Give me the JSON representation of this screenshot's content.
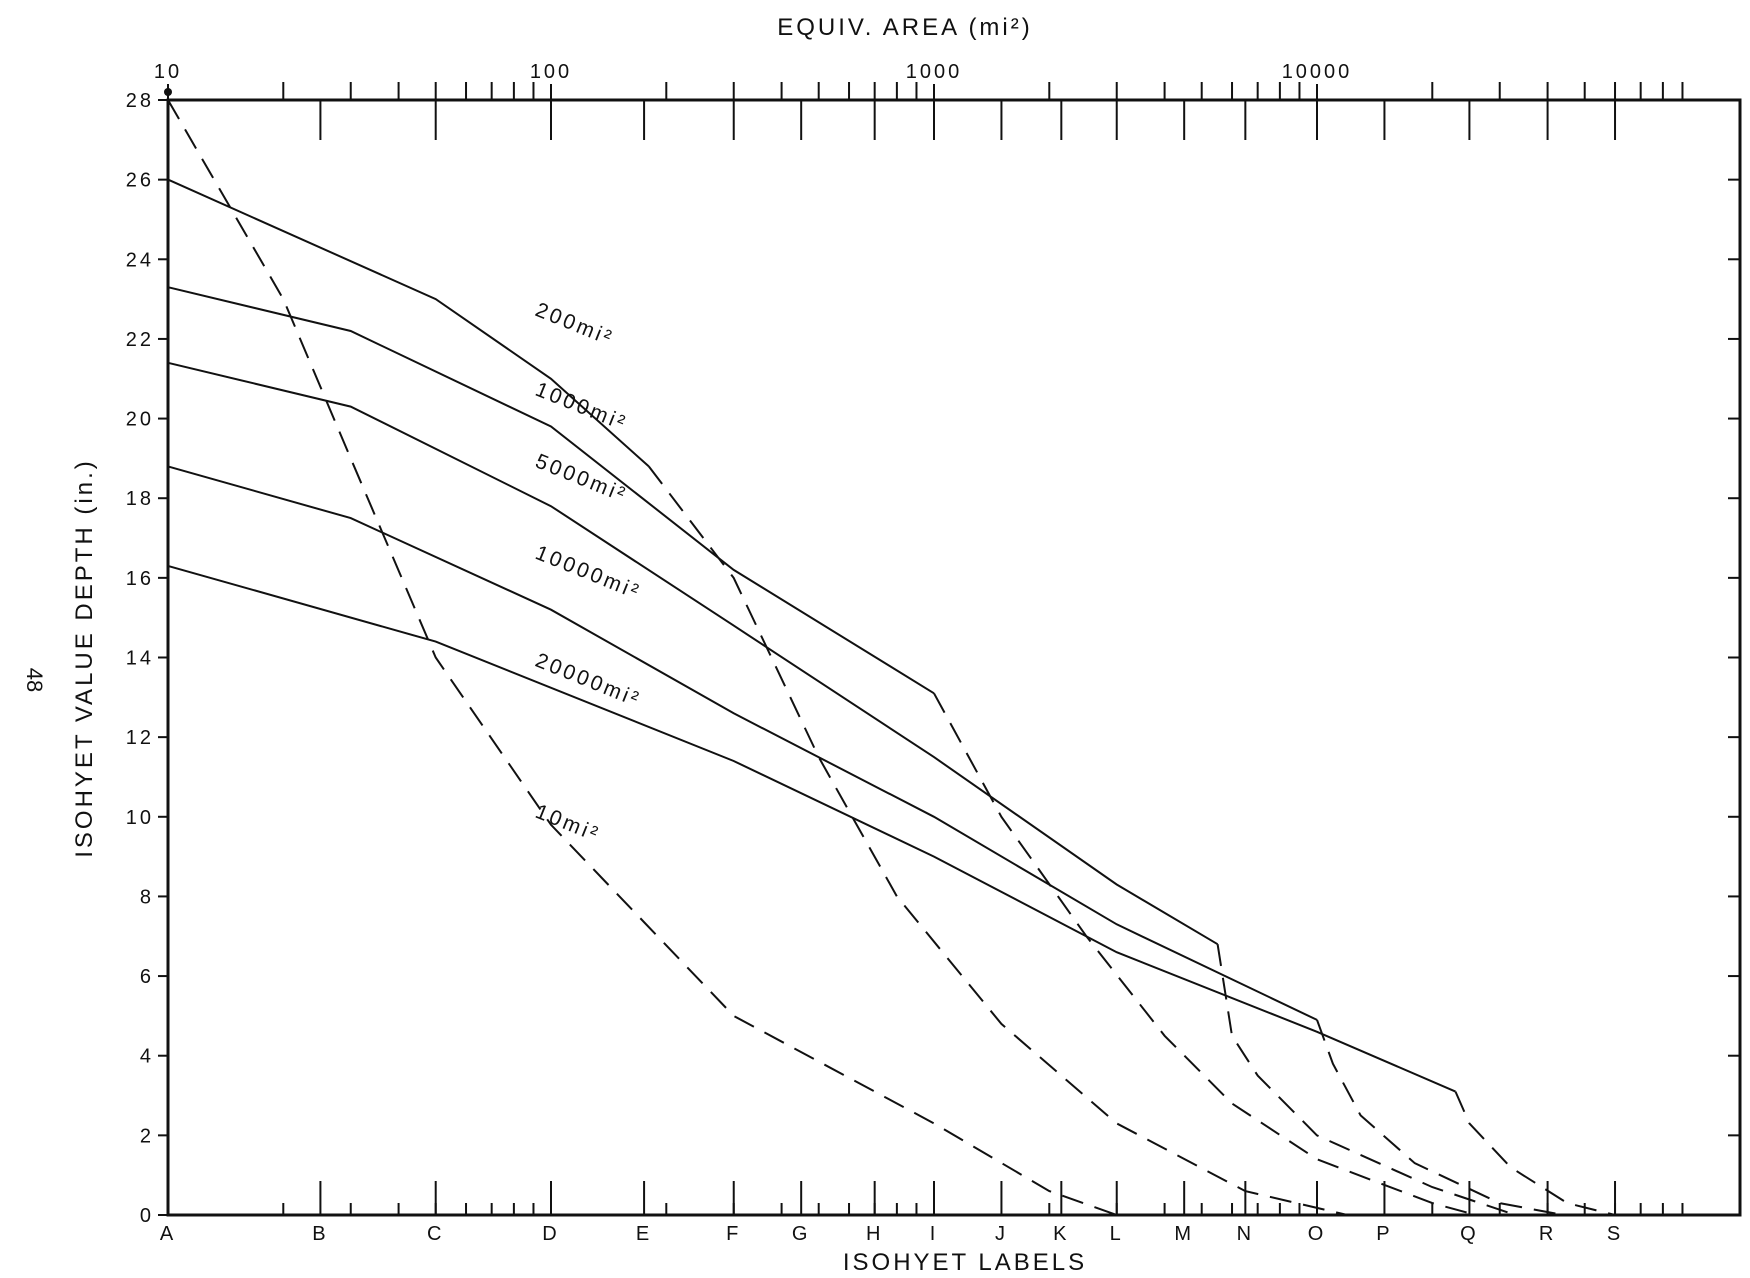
{
  "page_number": "48",
  "chart_data": {
    "type": "line",
    "title": "",
    "xlabel": "ISOHYET LABELS",
    "x2label": "EQUIV. AREA (mi²)",
    "ylabel": "ISOHYET VALUE DEPTH (in.)",
    "ylim": [
      0,
      28
    ],
    "yticks": [
      "0",
      "2",
      "4",
      "6",
      "8",
      "10",
      "12",
      "14",
      "16",
      "18",
      "20",
      "22",
      "24",
      "26",
      "28"
    ],
    "x_labels": [
      {
        "label": "A",
        "area": 10
      },
      {
        "label": "B",
        "area": 25
      },
      {
        "label": "C",
        "area": 50
      },
      {
        "label": "D",
        "area": 100
      },
      {
        "label": "E",
        "area": 175
      },
      {
        "label": "F",
        "area": 300
      },
      {
        "label": "G",
        "area": 450
      },
      {
        "label": "H",
        "area": 700
      },
      {
        "label": "I",
        "area": 1000
      },
      {
        "label": "J",
        "area": 1500
      },
      {
        "label": "K",
        "area": 2150
      },
      {
        "label": "L",
        "area": 3000
      },
      {
        "label": "M",
        "area": 4500
      },
      {
        "label": "N",
        "area": 6500
      },
      {
        "label": "O",
        "area": 10000
      },
      {
        "label": "P",
        "area": 15000
      },
      {
        "label": "Q",
        "area": 25000
      },
      {
        "label": "R",
        "area": 40000
      },
      {
        "label": "S",
        "area": 60000
      }
    ],
    "top_axis_labels": [
      {
        "label": "10",
        "area": 10
      },
      {
        "label": "100",
        "area": 100
      },
      {
        "label": "1000",
        "area": 1000
      },
      {
        "label": "10000",
        "area": 10000
      }
    ],
    "series": [
      {
        "name": "200mi²",
        "label_area": 1000,
        "label_depth": 22.6,
        "solid": [
          [
            10,
            26.0
          ],
          [
            50,
            23.0
          ],
          [
            100,
            21.0
          ],
          [
            180,
            18.8
          ]
        ],
        "dashed": [
          [
            180,
            18.8
          ],
          [
            300,
            16.0
          ],
          [
            500,
            11.5
          ],
          [
            800,
            8.0
          ],
          [
            1500,
            4.8
          ],
          [
            3000,
            2.3
          ],
          [
            6500,
            0.6
          ],
          [
            12000,
            0
          ]
        ]
      },
      {
        "name": "1000mi²",
        "label_area": 1000,
        "label_depth": 20.6,
        "solid": [
          [
            10,
            23.3
          ],
          [
            30,
            22.2
          ],
          [
            100,
            19.8
          ],
          [
            300,
            16.2
          ],
          [
            1000,
            13.1
          ]
        ],
        "dashed": [
          [
            1000,
            13.1
          ],
          [
            1500,
            10.0
          ],
          [
            2500,
            7.0
          ],
          [
            4000,
            4.5
          ],
          [
            6000,
            2.8
          ],
          [
            10000,
            1.4
          ],
          [
            20000,
            0.3
          ],
          [
            26000,
            0
          ]
        ]
      },
      {
        "name": "5000mi²",
        "label_area": 1000,
        "label_depth": 18.8,
        "solid": [
          [
            10,
            21.4
          ],
          [
            30,
            20.3
          ],
          [
            100,
            17.8
          ],
          [
            300,
            14.8
          ],
          [
            1000,
            11.5
          ],
          [
            3000,
            8.3
          ],
          [
            5500,
            6.8
          ]
        ],
        "dashed": [
          [
            5500,
            6.8
          ],
          [
            6000,
            4.5
          ],
          [
            7000,
            3.5
          ],
          [
            10000,
            2.0
          ],
          [
            20000,
            0.7
          ],
          [
            33000,
            0
          ]
        ]
      },
      {
        "name": "10000mi²",
        "label_area": 1000,
        "label_depth": 16.5,
        "solid": [
          [
            10,
            18.8
          ],
          [
            30,
            17.5
          ],
          [
            100,
            15.2
          ],
          [
            300,
            12.6
          ],
          [
            1000,
            10.0
          ],
          [
            3000,
            7.3
          ],
          [
            10000,
            4.9
          ]
        ],
        "dashed": [
          [
            10000,
            4.9
          ],
          [
            11000,
            3.8
          ],
          [
            13000,
            2.5
          ],
          [
            18000,
            1.3
          ],
          [
            30000,
            0.3
          ],
          [
            44000,
            0
          ]
        ]
      },
      {
        "name": "20000mi²",
        "label_area": 1000,
        "label_depth": 13.8,
        "solid": [
          [
            10,
            16.3
          ],
          [
            50,
            14.4
          ],
          [
            300,
            11.4
          ],
          [
            1000,
            9.0
          ],
          [
            3000,
            6.6
          ],
          [
            10000,
            4.6
          ],
          [
            23000,
            3.1
          ]
        ],
        "dashed": [
          [
            23000,
            3.1
          ],
          [
            25000,
            2.3
          ],
          [
            32000,
            1.2
          ],
          [
            45000,
            0.3
          ],
          [
            60000,
            0
          ]
        ]
      },
      {
        "name": "10mi²",
        "label_area": 1000,
        "label_depth": 10.0,
        "dashed": [
          [
            10,
            28.0
          ],
          [
            20,
            23.0
          ],
          [
            30,
            19.0
          ],
          [
            50,
            14.0
          ],
          [
            100,
            9.8
          ],
          [
            300,
            5.0
          ],
          [
            1000,
            2.3
          ],
          [
            2000,
            0.6
          ],
          [
            3000,
            0
          ]
        ]
      }
    ]
  }
}
